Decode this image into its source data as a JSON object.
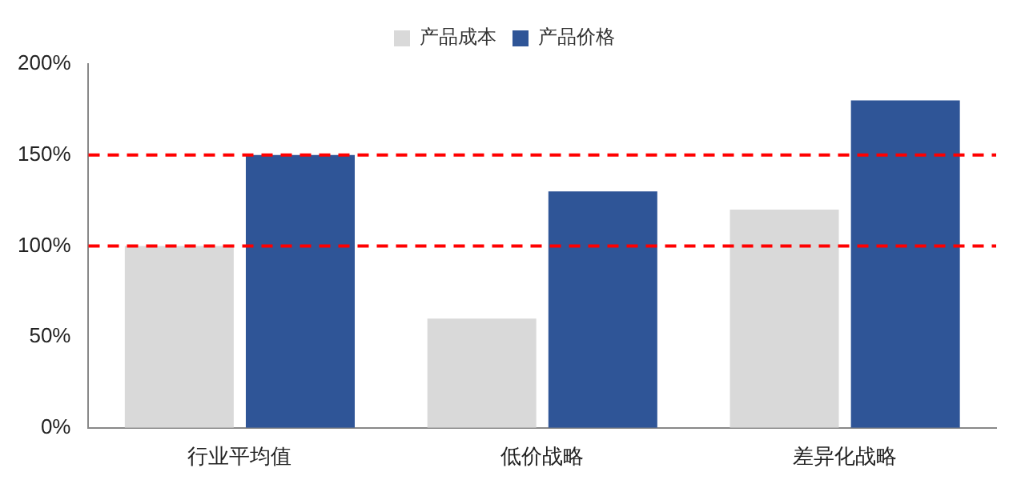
{
  "chart_data": {
    "type": "bar",
    "categories": [
      "行业平均值",
      "低价战略",
      "差异化战略"
    ],
    "series": [
      {
        "name": "产品成本",
        "color": "#d9d9d9",
        "values": [
          100,
          60,
          120
        ]
      },
      {
        "name": "产品价格",
        "color": "#2f5597",
        "values": [
          150,
          130,
          180
        ]
      }
    ],
    "ylim": [
      0,
      200
    ],
    "yticks": [
      {
        "value": 0,
        "label": "0%"
      },
      {
        "value": 50,
        "label": "50%"
      },
      {
        "value": 100,
        "label": "100%"
      },
      {
        "value": 150,
        "label": "150%"
      },
      {
        "value": 200,
        "label": "200%"
      }
    ],
    "ref_lines": [
      {
        "axis": "y",
        "value": 100,
        "color": "#ff0000",
        "line_style": "dashed"
      },
      {
        "axis": "y",
        "value": 150,
        "color": "#ff0000",
        "line_style": "dashed"
      }
    ],
    "legend": "top",
    "grid": false
  }
}
